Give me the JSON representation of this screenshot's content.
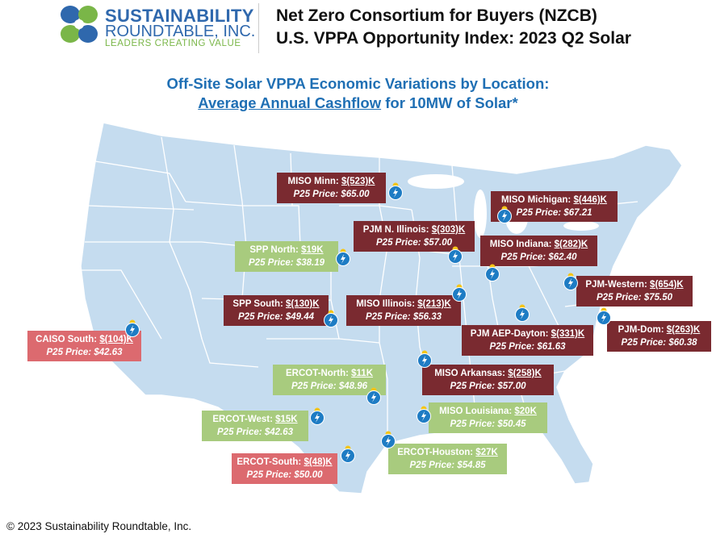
{
  "logo": {
    "line1": "SUSTAINABILITY",
    "line2": "ROUNDTABLE, INC.",
    "line3": "LEADERS CREATING VALUE",
    "colors": [
      "#2f68ad",
      "#7ab648"
    ]
  },
  "header": {
    "line1": "Net Zero Consortium for Buyers (NZCB)",
    "line2": "U.S. VPPA Opportunity Index: 2023 Q2 Solar"
  },
  "subtitle": {
    "line1": "Off-Site Solar VPPA Economic Variations by Location:",
    "line2_underlined": "Average Annual Cashflow",
    "line2_rest": " for 10MW of Solar*"
  },
  "legend_colors": {
    "negative_large": "#7a2a30",
    "negative_small": "#dc6a6f",
    "positive": "#a8cb7e",
    "map": "#c5dcef"
  },
  "regions": [
    {
      "name": "MISO Minn:",
      "value": "$(523)K",
      "price": "P25 Price: $65.00",
      "color": "dark"
    },
    {
      "name": "MISO Michigan:",
      "value": "$(446)K",
      "price": "P25 Price: $67.21",
      "color": "dark"
    },
    {
      "name": "PJM N. Illinois:",
      "value": "$(303)K",
      "price": "P25 Price: $57.00",
      "color": "dark"
    },
    {
      "name": "MISO Indiana:",
      "value": "$(282)K",
      "price": "P25 Price: $62.40",
      "color": "dark"
    },
    {
      "name": "SPP North:",
      "value": "$19K",
      "price": "P25 Price: $38.19",
      "color": "green"
    },
    {
      "name": "PJM-Western:",
      "value": "$(654)K",
      "price": "P25 Price: $75.50",
      "color": "dark"
    },
    {
      "name": "SPP South:",
      "value": "$(130)K",
      "price": "P25 Price: $49.44",
      "color": "dark"
    },
    {
      "name": "MISO Illinois:",
      "value": "$(213)K",
      "price": "P25 Price: $56.33",
      "color": "dark"
    },
    {
      "name": "CAISO South:",
      "value": "$(104)K",
      "price": "P25 Price: $42.63",
      "color": "pink"
    },
    {
      "name": "PJM AEP-Dayton:",
      "value": "$(331)K",
      "price": "P25 Price: $61.63",
      "color": "dark"
    },
    {
      "name": "PJM-Dom:",
      "value": "$(263)K",
      "price": "P25 Price: $60.38",
      "color": "dark"
    },
    {
      "name": "ERCOT-North:",
      "value": "$11K",
      "price": "P25 Price: $48.96",
      "color": "green"
    },
    {
      "name": "MISO Arkansas:",
      "value": "$(258)K",
      "price": "P25 Price: $57.00",
      "color": "dark"
    },
    {
      "name": "ERCOT-West:",
      "value": "$15K",
      "price": "P25 Price: $42.63",
      "color": "green"
    },
    {
      "name": "MISO Louisiana:",
      "value": "$20K",
      "price": "P25 Price: $50.45",
      "color": "green"
    },
    {
      "name": "ERCOT-Houston:",
      "value": "$27K",
      "price": "P25 Price: $54.85",
      "color": "green"
    },
    {
      "name": "ERCOT-South:",
      "value": "$(48)K",
      "price": "P25 Price: $50.00",
      "color": "pink"
    }
  ],
  "footer": "© 2023 Sustainability Roundtable, Inc."
}
